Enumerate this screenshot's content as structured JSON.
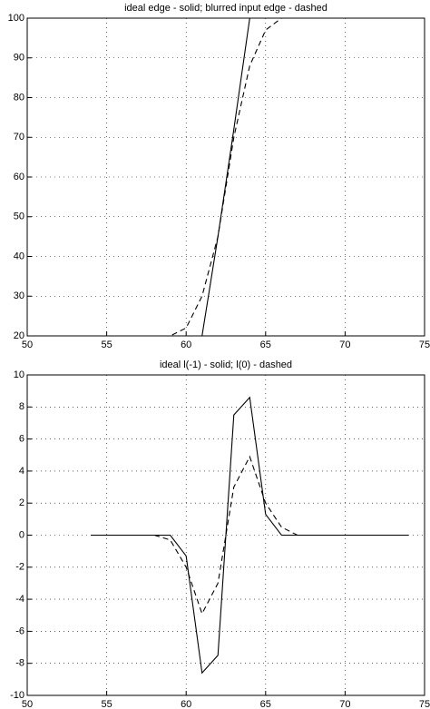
{
  "chart_data": [
    {
      "type": "line",
      "title": "ideal edge - solid; blurred input edge - dashed",
      "x": [
        50,
        51,
        52,
        53,
        54,
        55,
        56,
        57,
        58,
        59,
        60,
        61,
        62,
        63,
        64,
        65,
        66,
        67,
        68,
        69,
        70,
        71,
        72,
        73,
        74,
        75
      ],
      "series": [
        {
          "color": "#000000",
          "style": "solid",
          "values": [
            20,
            20,
            20,
            20,
            20,
            20,
            20,
            20,
            20,
            20,
            20,
            20,
            45,
            72,
            100,
            100,
            100,
            100,
            100,
            100,
            100,
            100,
            100,
            100,
            100,
            100
          ]
        },
        {
          "color": "#000000",
          "style": "dashed",
          "values": [
            20,
            20,
            20,
            20,
            20,
            20,
            20,
            20,
            20,
            20,
            22,
            30,
            45,
            70,
            88,
            97,
            100,
            100,
            100,
            100,
            100,
            100,
            100,
            100,
            100,
            100
          ]
        }
      ],
      "xlim": [
        50,
        75
      ],
      "ylim": [
        20,
        100
      ],
      "xticks": [
        50,
        55,
        60,
        65,
        70,
        75
      ],
      "yticks": [
        20,
        30,
        40,
        50,
        60,
        70,
        80,
        90,
        100
      ],
      "grid": true
    },
    {
      "type": "line",
      "title": "ideal l(-1) - solid; l(0) - dashed",
      "x": [
        54,
        55,
        56,
        57,
        58,
        59,
        60,
        61,
        62,
        63,
        64,
        65,
        66,
        67,
        68,
        69,
        70,
        71,
        72,
        73,
        74
      ],
      "series": [
        {
          "color": "#000000",
          "style": "solid",
          "values": [
            0,
            0,
            0,
            0,
            0,
            0,
            -1.3,
            -8.6,
            -7.5,
            7.5,
            8.6,
            1.3,
            0,
            0,
            0,
            0,
            0,
            0,
            0,
            0,
            0
          ]
        },
        {
          "color": "#000000",
          "style": "dashed",
          "values": [
            0,
            0,
            0,
            0,
            0,
            -0.3,
            -2,
            -4.9,
            -3,
            3,
            4.9,
            2,
            0.5,
            0,
            0,
            0,
            0,
            0,
            0,
            0,
            0
          ]
        }
      ],
      "xlim": [
        50,
        75
      ],
      "ylim": [
        -10,
        10
      ],
      "xticks": [
        50,
        55,
        60,
        65,
        70,
        75
      ],
      "yticks": [
        -10,
        -8,
        -6,
        -4,
        -2,
        0,
        2,
        4,
        6,
        8,
        10
      ],
      "grid": true
    }
  ]
}
